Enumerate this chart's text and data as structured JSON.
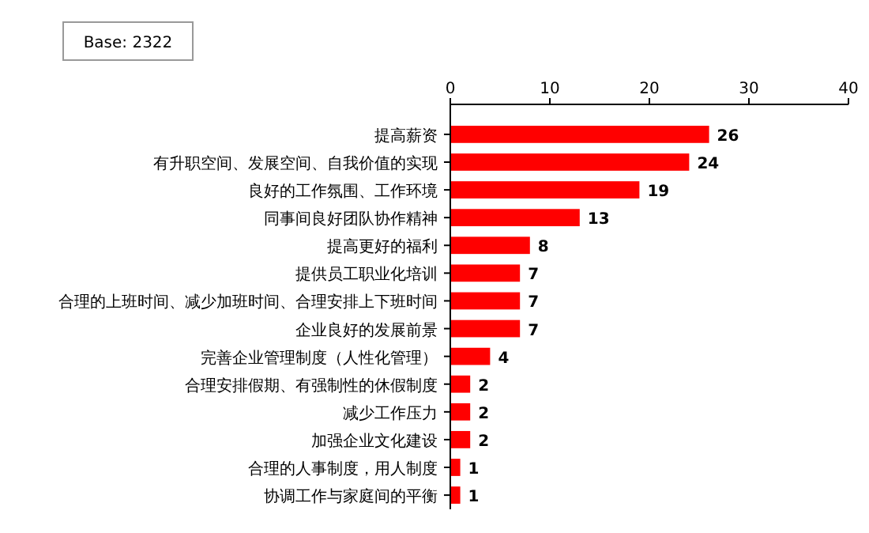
{
  "chart_data": {
    "type": "bar",
    "orientation": "horizontal",
    "categories": [
      "提高薪资",
      "有升职空间、发展空间、自我价值的实现",
      "良好的工作氛围、工作环境",
      "同事间良好团队协作精神",
      "提高更好的福利",
      "提供员工职业化培训",
      "合理的上班时间、减少加班时间、合理安排上下班时间",
      "企业良好的发展前景",
      "完善企业管理制度（人性化管理）",
      "合理安排假期、有强制性的休假制度",
      "减少工作压力",
      "加强企业文化建设",
      "合理的人事制度，用人制度",
      "协调工作与家庭间的平衡"
    ],
    "values": [
      26,
      24,
      19,
      13,
      8,
      7,
      7,
      7,
      4,
      2,
      2,
      2,
      1,
      1
    ],
    "color": "#ff0000",
    "xlim": [
      0,
      40
    ],
    "xticks": [
      0,
      10,
      20,
      30,
      40
    ],
    "data_labels": true,
    "annotations": [
      "Base: 2322"
    ]
  }
}
